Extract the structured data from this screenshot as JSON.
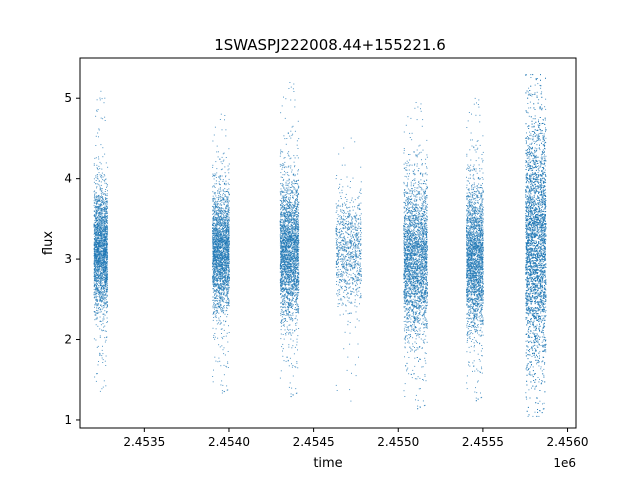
{
  "chart_data": {
    "type": "scatter",
    "title": "1SWASPJ222008.44+155221.6",
    "xlabel": "time",
    "ylabel": "flux",
    "x_offset_label": "1e6",
    "xlim": [
      2.45312,
      2.45605
    ],
    "ylim": [
      0.9,
      5.5
    ],
    "x_ticks": [
      2.4535,
      2.454,
      2.4545,
      2.455,
      2.4555,
      2.456
    ],
    "x_tick_labels": [
      "2.4535",
      "2.4540",
      "2.4545",
      "2.4550",
      "2.4555",
      "2.4560"
    ],
    "y_ticks": [
      1,
      2,
      3,
      4,
      5
    ],
    "y_tick_labels": [
      "1",
      "2",
      "3",
      "4",
      "5"
    ],
    "marker_color": "#1f77b4",
    "grid": false,
    "clusters": [
      {
        "x_range": [
          2.4532,
          2.45328
        ],
        "y_center": 3.1,
        "y_core": [
          2.4,
          3.9
        ],
        "y_extreme": [
          1.35,
          5.1
        ],
        "density": 2200
      },
      {
        "x_range": [
          2.4539,
          2.454
        ],
        "y_center": 3.1,
        "y_core": [
          2.4,
          3.9
        ],
        "y_extreme": [
          1.3,
          4.85
        ],
        "density": 2400
      },
      {
        "x_range": [
          2.4543,
          2.45441
        ],
        "y_center": 3.1,
        "y_core": [
          2.3,
          4.0
        ],
        "y_extreme": [
          1.25,
          5.25
        ],
        "density": 2600
      },
      {
        "x_range": [
          2.45463,
          2.45478
        ],
        "y_center": 3.1,
        "y_core": [
          2.5,
          3.8
        ],
        "y_extreme": [
          1.2,
          4.6
        ],
        "density": 900
      },
      {
        "x_range": [
          2.45503,
          2.45517
        ],
        "y_center": 3.0,
        "y_core": [
          2.2,
          4.1
        ],
        "y_extreme": [
          1.1,
          5.0
        ],
        "density": 2800
      },
      {
        "x_range": [
          2.4554,
          2.4555
        ],
        "y_center": 3.0,
        "y_core": [
          2.2,
          4.0
        ],
        "y_extreme": [
          1.2,
          5.05
        ],
        "density": 2400
      },
      {
        "x_range": [
          2.45575,
          2.45587
        ],
        "y_center": 3.2,
        "y_core": [
          1.6,
          4.6
        ],
        "y_extreme": [
          1.05,
          5.3
        ],
        "density": 4000
      }
    ]
  }
}
